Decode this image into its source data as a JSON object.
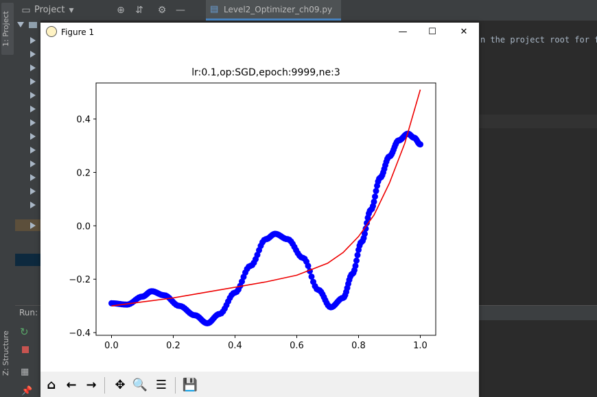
{
  "ide": {
    "left_tabs": {
      "project": "1: Project",
      "structure": "Z: Structure"
    },
    "project_dropdown": "Project",
    "editor_tab": "Level2_Optimizer_ch09.py",
    "editor_snippet": "n the project root for f",
    "run_label": "Run:"
  },
  "figure": {
    "window_title": "Figure 1",
    "window_buttons": {
      "minimize": "—",
      "maximize": "☐",
      "close": "✕"
    },
    "toolbar_icons": [
      "home-icon",
      "back-icon",
      "forward-icon",
      "pan-icon",
      "zoom-icon",
      "configure-icon",
      "save-icon"
    ]
  },
  "chart_data": {
    "type": "scatter",
    "title": "lr:0.1,op:SGD,epoch:9999,ne:3",
    "xlabel": "",
    "ylabel": "",
    "xlim": [
      -0.05,
      1.05
    ],
    "ylim": [
      -0.41,
      0.535
    ],
    "xticks": [
      "0.0",
      "0.2",
      "0.4",
      "0.6",
      "0.8",
      "1.0"
    ],
    "yticks": [
      "−0.4",
      "−0.2",
      "0.0",
      "0.2",
      "0.4"
    ],
    "xtick_values": [
      0.0,
      0.2,
      0.4,
      0.6,
      0.8,
      1.0
    ],
    "ytick_values": [
      -0.4,
      -0.2,
      0.0,
      0.2,
      0.4
    ],
    "grid": false,
    "series": [
      {
        "kind": "scatter",
        "color": "#0000ff",
        "x": [
          0.0,
          0.05,
          0.1,
          0.13,
          0.17,
          0.22,
          0.27,
          0.31,
          0.35,
          0.4,
          0.45,
          0.5,
          0.53,
          0.57,
          0.62,
          0.67,
          0.71,
          0.75,
          0.78,
          0.81,
          0.84,
          0.87,
          0.9,
          0.93,
          0.96,
          0.98,
          1.0
        ],
        "y": [
          -0.29,
          -0.295,
          -0.265,
          -0.245,
          -0.26,
          -0.3,
          -0.335,
          -0.365,
          -0.33,
          -0.25,
          -0.15,
          -0.05,
          -0.03,
          -0.05,
          -0.12,
          -0.24,
          -0.305,
          -0.27,
          -0.18,
          -0.06,
          0.06,
          0.18,
          0.26,
          0.32,
          0.345,
          0.33,
          0.305
        ]
      },
      {
        "kind": "line",
        "color": "#ee0000",
        "x": [
          0.0,
          0.1,
          0.2,
          0.3,
          0.4,
          0.5,
          0.6,
          0.7,
          0.75,
          0.8,
          0.85,
          0.9,
          0.95,
          1.0
        ],
        "y": [
          -0.3,
          -0.285,
          -0.27,
          -0.25,
          -0.23,
          -0.21,
          -0.185,
          -0.14,
          -0.1,
          -0.04,
          0.04,
          0.16,
          0.31,
          0.51
        ]
      }
    ]
  }
}
